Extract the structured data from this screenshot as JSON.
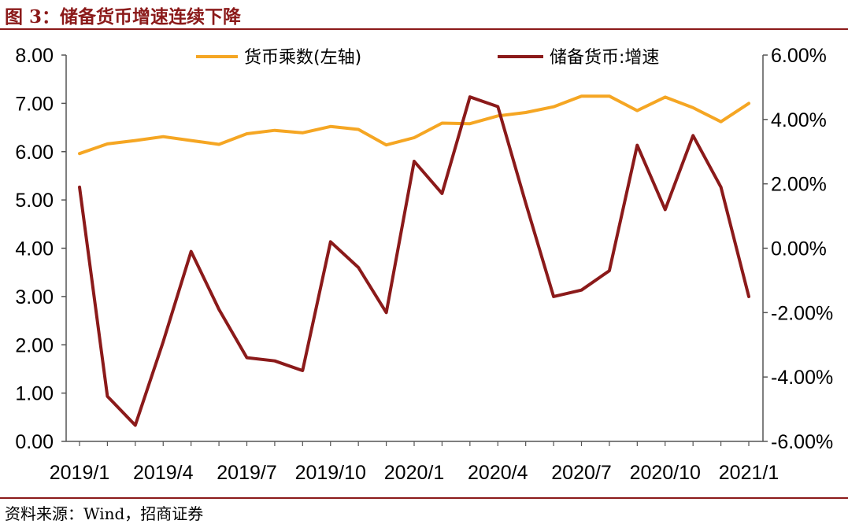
{
  "header": {
    "title": "图 3：储备货币增速连续下降"
  },
  "footer": {
    "source": "资料来源：Wind，招商证券"
  },
  "chart_data": {
    "type": "line",
    "title": "",
    "x": [
      "2019/1",
      "2019/2",
      "2019/3",
      "2019/4",
      "2019/5",
      "2019/6",
      "2019/7",
      "2019/8",
      "2019/9",
      "2019/10",
      "2019/11",
      "2019/12",
      "2020/1",
      "2020/2",
      "2020/3",
      "2020/4",
      "2020/5",
      "2020/6",
      "2020/7",
      "2020/8",
      "2020/9",
      "2020/10",
      "2020/11",
      "2020/12",
      "2021/1"
    ],
    "x_tick_labels": [
      "2019/1",
      "2019/4",
      "2019/7",
      "2019/10",
      "2020/1",
      "2020/4",
      "2020/7",
      "2020/10",
      "2021/1"
    ],
    "series": [
      {
        "name": "货币乘数(左轴)",
        "axis": "left",
        "color": "#f5a623",
        "values": [
          5.96,
          6.16,
          6.23,
          6.31,
          6.23,
          6.15,
          6.37,
          6.44,
          6.39,
          6.52,
          6.46,
          6.14,
          6.29,
          6.59,
          6.58,
          6.74,
          6.81,
          6.93,
          7.15,
          7.15,
          6.85,
          7.13,
          6.91,
          6.62,
          7.0
        ]
      },
      {
        "name": "储备货币:增速",
        "axis": "right",
        "color": "#8b1a1a",
        "values": [
          1.9,
          -4.6,
          -5.5,
          -2.9,
          -0.1,
          -1.9,
          -3.4,
          -3.5,
          -3.8,
          0.2,
          -0.6,
          -2.0,
          2.7,
          1.7,
          4.7,
          4.4,
          1.4,
          -1.5,
          -1.3,
          -0.7,
          3.2,
          1.2,
          3.5,
          1.9,
          -1.5
        ]
      }
    ],
    "y_left": {
      "min": 0,
      "max": 8,
      "tick_labels": [
        "0.00",
        "1.00",
        "2.00",
        "3.00",
        "4.00",
        "5.00",
        "6.00",
        "7.00",
        "8.00"
      ]
    },
    "y_right": {
      "min": -6,
      "max": 6,
      "tick_labels": [
        "-6.00%",
        "-4.00%",
        "-2.00%",
        "0.00%",
        "2.00%",
        "4.00%",
        "6.00%"
      ]
    },
    "grid": false,
    "legend_position": "top"
  }
}
